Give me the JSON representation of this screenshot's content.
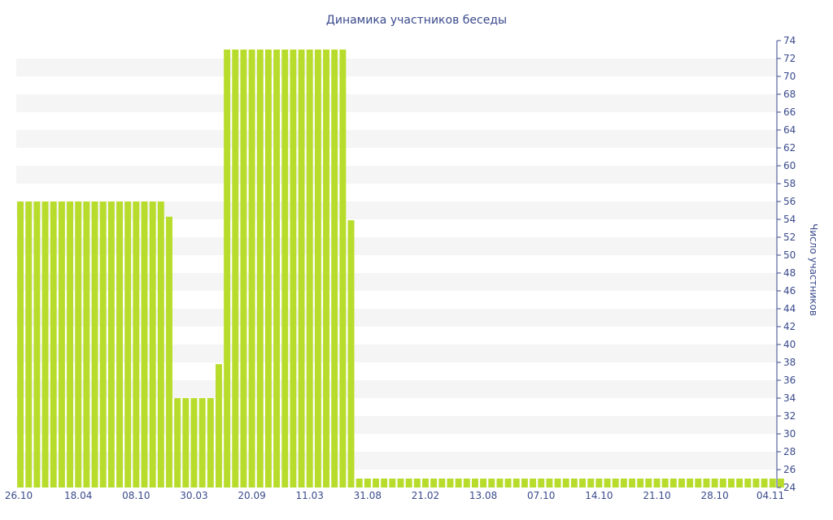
{
  "chart_data": {
    "type": "bar",
    "title": "Динамика участников беседы",
    "xlabel": "",
    "ylabel": "Число участников",
    "ylim": [
      24,
      74
    ],
    "y_ticks": [
      24,
      26,
      28,
      30,
      32,
      34,
      36,
      38,
      40,
      42,
      44,
      46,
      48,
      50,
      52,
      54,
      56,
      58,
      60,
      62,
      64,
      66,
      68,
      70,
      72,
      74
    ],
    "y_axis_position": "right",
    "grid": "alternating-bands",
    "legend": "none",
    "x_tick_labels": [
      "26.10",
      "18.04",
      "08.10",
      "30.03",
      "20.09",
      "11.03",
      "31.08",
      "21.02",
      "13.08",
      "07.10",
      "14.10",
      "21.10",
      "28.10",
      "04.11"
    ],
    "x_tick_label_bar_index": [
      0,
      7,
      14,
      21,
      28,
      35,
      42,
      49,
      56,
      63,
      70,
      77,
      84,
      91
    ],
    "values": [
      56,
      56,
      56,
      56,
      56,
      56,
      56,
      56,
      56,
      56,
      56,
      56,
      56,
      56,
      56,
      56,
      56,
      56,
      54.3,
      34,
      34,
      34,
      34,
      34,
      37.8,
      73,
      73,
      73,
      73,
      73,
      73,
      73,
      73,
      73,
      73,
      73,
      73,
      73,
      73,
      73,
      53.9,
      25,
      25,
      25,
      25,
      25,
      25,
      25,
      25,
      25,
      25,
      25,
      25,
      25,
      25,
      25,
      25,
      25,
      25,
      25,
      25,
      25,
      25,
      25,
      25,
      25,
      25,
      25,
      25,
      25,
      25,
      25,
      25,
      25,
      25,
      25,
      25,
      25,
      25,
      25,
      25,
      25,
      25,
      25,
      25,
      25,
      25,
      25,
      25,
      25,
      25,
      25,
      25
    ],
    "colors": {
      "bar": "#b8dc2b",
      "band": "#f5f5f5",
      "text": "#3a4a8c"
    }
  }
}
